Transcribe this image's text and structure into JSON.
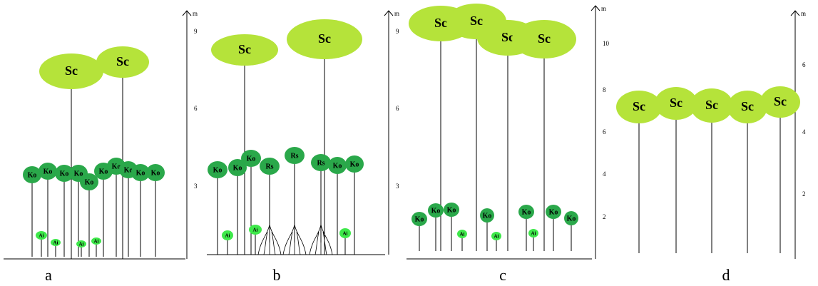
{
  "panels": [
    {
      "label": "a",
      "unit": "m",
      "ticks": [
        "9",
        "6",
        "3"
      ],
      "trees": [
        "Sc",
        "Sc",
        "Ko",
        "Ko",
        "Ko",
        "Ko",
        "Ko",
        "Ko",
        "Ko",
        "Ko",
        "Ko",
        "Ko",
        "Ai",
        "Ai",
        "Ai",
        "Ai"
      ]
    },
    {
      "label": "b",
      "unit": "m",
      "ticks": [
        "9",
        "6",
        "3"
      ],
      "trees": [
        "Sc",
        "Sc",
        "Ko",
        "Ko",
        "Ko",
        "Rs",
        "Rs",
        "Rs",
        "Ko",
        "Ko",
        "Ai",
        "Ai",
        "Ai"
      ]
    },
    {
      "label": "c",
      "unit": "m",
      "ticks": [
        "10",
        "8",
        "6",
        "4",
        "2"
      ],
      "trees": [
        "Sc",
        "Sc",
        "Sc",
        "Sc",
        "Ko",
        "Ko",
        "Ko",
        "Ko",
        "Ko",
        "Ko",
        "Ko",
        "Ai",
        "Ai",
        "Ai"
      ]
    },
    {
      "label": "d",
      "unit": "m",
      "ticks": [
        "6",
        "4",
        "2"
      ],
      "trees": [
        "Sc",
        "Sc",
        "Sc",
        "Sc",
        "Sc"
      ]
    }
  ]
}
